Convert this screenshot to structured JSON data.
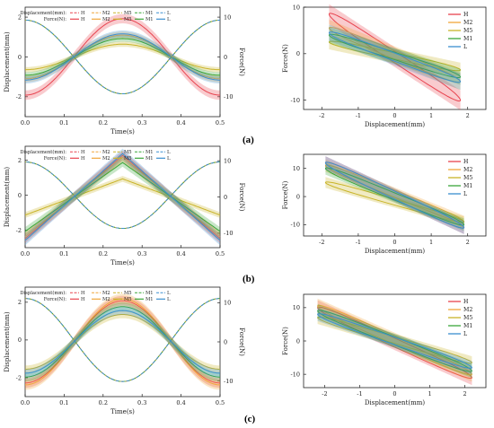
{
  "legend": {
    "displacement_label": "Displacement(mm):",
    "force_label": "Force(N):",
    "series_names": [
      "H",
      "M2",
      "M5",
      "M1",
      "L"
    ]
  },
  "colors": {
    "H": "#e8434f",
    "M2": "#f0a63a",
    "M5": "#c9b428",
    "M1": "#3aa63a",
    "L": "#3a8fd0",
    "band": 0.28
  },
  "panel_labels": [
    "(a)",
    "(b)",
    "(c)"
  ],
  "chart_data": [
    {
      "type": "line",
      "panel": "(a) time history",
      "xlabel": "Time(s)",
      "ylabel": "Displacement(mm)",
      "y2label": "Force(N)",
      "xlim": [
        0,
        0.5
      ],
      "ylim": [
        -3,
        2.5
      ],
      "y2lim": [
        -15,
        12.5
      ],
      "xticks": [
        "0.0",
        "0.1",
        "0.2",
        "0.3",
        "0.4",
        "0.5"
      ],
      "yticks": [
        "-2",
        "0",
        "2"
      ],
      "y2ticks": [
        "-10",
        "0",
        "10"
      ],
      "displacement": {
        "x": [
          0,
          0.25,
          0.5
        ],
        "y": [
          1.85,
          -1.85,
          1.85
        ]
      },
      "force_peak": [
        {
          "name": "H",
          "value": 9.6
        },
        {
          "name": "M2",
          "value": 5.5
        },
        {
          "name": "M5",
          "value": 3.2
        },
        {
          "name": "M1",
          "value": 4.6
        },
        {
          "name": "L",
          "value": 5.8
        }
      ],
      "force_shape": "sine",
      "grid": false
    },
    {
      "type": "line",
      "panel": "(a) hysteresis",
      "xlabel": "Displacement(mm)",
      "ylabel": "Force(N)",
      "xlim": [
        -2.5,
        2.5
      ],
      "ylim": [
        -12,
        10
      ],
      "xticks": [
        "-2",
        "-1",
        "0",
        "1",
        "2"
      ],
      "yticks": [
        "-10",
        "0",
        "10"
      ],
      "loops": [
        {
          "name": "H",
          "x": [
            -1.8,
            1.8
          ],
          "y": [
            8.5,
            -10
          ]
        },
        {
          "name": "M2",
          "x": [
            -1.8,
            1.8
          ],
          "y": [
            5.5,
            -6
          ]
        },
        {
          "name": "M5",
          "x": [
            -1.8,
            1.8
          ],
          "y": [
            2.5,
            -3.5
          ]
        },
        {
          "name": "M1",
          "x": [
            -1.8,
            1.8
          ],
          "y": [
            4,
            -5
          ]
        },
        {
          "name": "L",
          "x": [
            -1.8,
            1.8
          ],
          "y": [
            4.5,
            -6
          ]
        }
      ],
      "legend_position": "top-right",
      "grid": false
    },
    {
      "type": "line",
      "panel": "(b) time history",
      "xlabel": "Time(s)",
      "ylabel": "Displacement(mm)",
      "y2label": "Force(N)",
      "xlim": [
        0,
        0.5
      ],
      "ylim": [
        -3,
        2.8
      ],
      "y2lim": [
        -14,
        14
      ],
      "xticks": [
        "0.0",
        "0.1",
        "0.2",
        "0.3",
        "0.4",
        "0.5"
      ],
      "yticks": [
        "-2",
        "0",
        "2"
      ],
      "y2ticks": [
        "-10",
        "0",
        "10"
      ],
      "displacement": {
        "x": [
          0,
          0.25,
          0.5
        ],
        "y": [
          1.9,
          -1.9,
          1.9
        ]
      },
      "force_peak": [
        {
          "name": "H",
          "value": 11.5
        },
        {
          "name": "M2",
          "value": 11
        },
        {
          "name": "M5",
          "value": 5
        },
        {
          "name": "M1",
          "value": 9.5
        },
        {
          "name": "L",
          "value": 12
        }
      ],
      "force_shape": "triangular",
      "grid": false
    },
    {
      "type": "line",
      "panel": "(b) hysteresis",
      "xlabel": "Displacement(mm)",
      "ylabel": "Force(N)",
      "xlim": [
        -2.5,
        2.5
      ],
      "ylim": [
        -14,
        15
      ],
      "xticks": [
        "-2",
        "-1",
        "0",
        "1",
        "2"
      ],
      "yticks": [
        "-10",
        "0",
        "10"
      ],
      "loops": [
        {
          "name": "H",
          "x": [
            -1.9,
            1.9
          ],
          "y": [
            12,
            -11
          ]
        },
        {
          "name": "M2",
          "x": [
            -1.9,
            1.9
          ],
          "y": [
            11,
            -9
          ]
        },
        {
          "name": "M5",
          "x": [
            -1.9,
            1.9
          ],
          "y": [
            5,
            -9
          ]
        },
        {
          "name": "M1",
          "x": [
            -1.9,
            1.9
          ],
          "y": [
            10,
            -10
          ]
        },
        {
          "name": "L",
          "x": [
            -1.9,
            1.9
          ],
          "y": [
            12,
            -11
          ]
        }
      ],
      "legend_position": "top-right",
      "grid": false
    },
    {
      "type": "line",
      "panel": "(c) time history",
      "xlabel": "Time(s)",
      "ylabel": "Displacement(mm)",
      "y2label": "Force(N)",
      "xlim": [
        0,
        0.5
      ],
      "ylim": [
        -3,
        2.8
      ],
      "y2lim": [
        -14,
        14
      ],
      "xticks": [
        "0.0",
        "0.1",
        "0.2",
        "0.3",
        "0.4",
        "0.5"
      ],
      "yticks": [
        "-2",
        "0",
        "2"
      ],
      "y2ticks": [
        "-10",
        "0",
        "10"
      ],
      "displacement": {
        "x": [
          0,
          0.25,
          0.5
        ],
        "y": [
          2.2,
          -2.2,
          2.2
        ]
      },
      "force_peak": [
        {
          "name": "H",
          "value": 10.5
        },
        {
          "name": "M2",
          "value": 11
        },
        {
          "name": "M5",
          "value": 7
        },
        {
          "name": "M1",
          "value": 9
        },
        {
          "name": "L",
          "value": 8
        }
      ],
      "force_shape": "sine",
      "grid": false
    },
    {
      "type": "line",
      "panel": "(c) hysteresis",
      "xlabel": "Displacement(mm)",
      "ylabel": "Force(N)",
      "xlim": [
        -2.6,
        2.6
      ],
      "ylim": [
        -14,
        14
      ],
      "xticks": [
        "-2",
        "-1",
        "0",
        "1",
        "2"
      ],
      "yticks": [
        "-10",
        "0",
        "10"
      ],
      "loops": [
        {
          "name": "H",
          "x": [
            -2.2,
            2.2
          ],
          "y": [
            10,
            -11
          ]
        },
        {
          "name": "M2",
          "x": [
            -2.2,
            2.2
          ],
          "y": [
            10.5,
            -10
          ]
        },
        {
          "name": "M5",
          "x": [
            -2.2,
            2.2
          ],
          "y": [
            7,
            -6.5
          ]
        },
        {
          "name": "M1",
          "x": [
            -2.2,
            2.2
          ],
          "y": [
            9,
            -9
          ]
        },
        {
          "name": "L",
          "x": [
            -2.2,
            2.2
          ],
          "y": [
            8,
            -8
          ]
        }
      ],
      "legend_position": "top-right",
      "grid": false
    }
  ]
}
